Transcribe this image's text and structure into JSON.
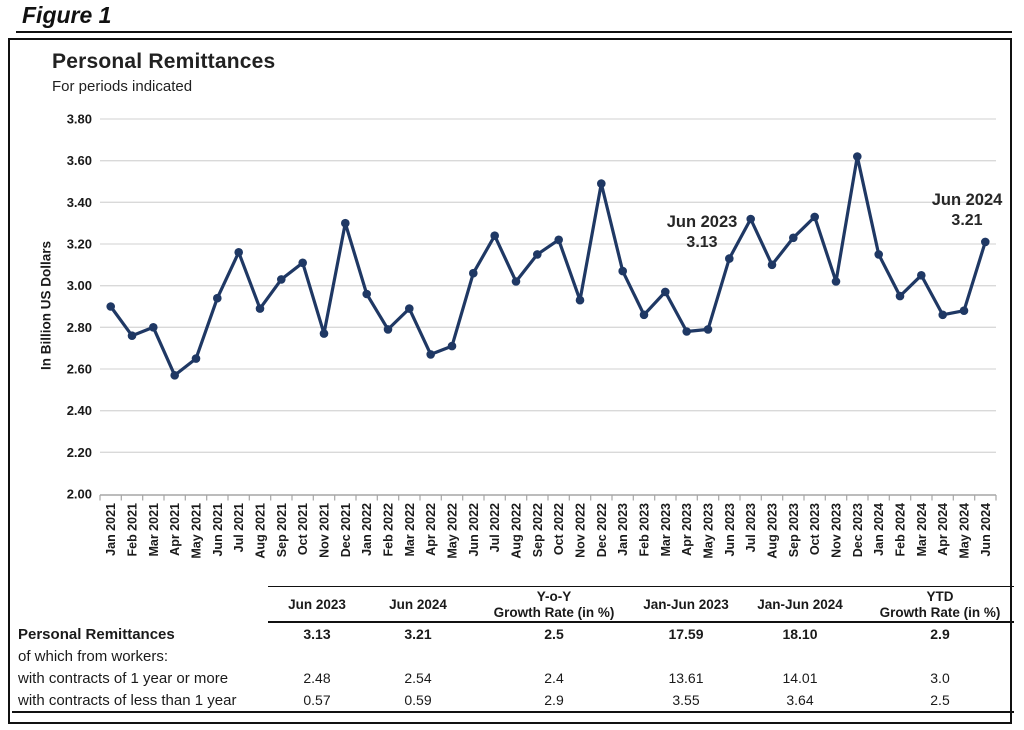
{
  "figure_label": "Figure 1",
  "chart": {
    "title": "Personal Remittances",
    "subtitle": "For periods indicated",
    "ylabel": "In Billion US Dollars",
    "annotations": {
      "jun2023": {
        "label": "Jun 2023",
        "value": "3.13"
      },
      "jun2024": {
        "label": "Jun 2024",
        "value": "3.21"
      }
    }
  },
  "chart_data": {
    "type": "line",
    "title": "Personal Remittances",
    "subtitle": "For periods indicated",
    "xlabel": "",
    "ylabel": "In Billion US Dollars",
    "ylim": [
      2.0,
      3.8
    ],
    "ytick_step": 0.2,
    "grid": true,
    "legend": false,
    "colors": {
      "line": "#1f3864",
      "grid": "#d9d9d9",
      "axis": "#a6a6a6",
      "text": "#1a1a1a"
    },
    "categories": [
      "Jan 2021",
      "Feb 2021",
      "Mar 2021",
      "Apr 2021",
      "May 2021",
      "Jun 2021",
      "Jul 2021",
      "Aug 2021",
      "Sep 2021",
      "Oct 2021",
      "Nov 2021",
      "Dec 2021",
      "Jan 2022",
      "Feb 2022",
      "Mar 2022",
      "Apr 2022",
      "May 2022",
      "Jun 2022",
      "Jul 2022",
      "Aug 2022",
      "Sep 2022",
      "Oct 2022",
      "Nov 2022",
      "Dec 2022",
      "Jan 2023",
      "Feb 2023",
      "Mar 2023",
      "Apr 2023",
      "May 2023",
      "Jun 2023",
      "Jul 2023",
      "Aug 2023",
      "Sep 2023",
      "Oct 2023",
      "Nov 2023",
      "Dec 2023",
      "Jan 2024",
      "Feb 2024",
      "Mar 2024",
      "Apr 2024",
      "May 2024",
      "Jun 2024"
    ],
    "values": [
      2.9,
      2.76,
      2.8,
      2.57,
      2.65,
      2.94,
      3.16,
      2.89,
      3.03,
      3.11,
      2.77,
      3.3,
      2.96,
      2.79,
      2.89,
      2.67,
      2.71,
      3.06,
      3.24,
      3.02,
      3.15,
      3.22,
      2.93,
      3.49,
      3.07,
      2.86,
      2.97,
      2.78,
      2.79,
      3.13,
      3.32,
      3.1,
      3.23,
      3.33,
      3.02,
      3.62,
      3.15,
      2.95,
      3.05,
      2.86,
      2.88,
      3.21
    ],
    "annotations": [
      {
        "category": "Jun 2023",
        "text": "Jun 2023",
        "value": 3.13
      },
      {
        "category": "Jun 2024",
        "text": "Jun 2024",
        "value": 3.21
      }
    ]
  },
  "table": {
    "col_headers": [
      "Jun 2023",
      "Jun 2024",
      "Y-o-Y\nGrowth Rate (in %)",
      "Jan-Jun 2023",
      "Jan-Jun 2024",
      "YTD\nGrowth Rate (in %)"
    ],
    "rows": [
      {
        "label": "Personal Remittances",
        "style": "bold",
        "values": [
          "3.13",
          "3.21",
          "2.5",
          "17.59",
          "18.10",
          "2.9"
        ]
      },
      {
        "label": "of which from workers:",
        "style": "normal",
        "values": [
          "",
          "",
          "",
          "",
          "",
          ""
        ]
      },
      {
        "label": "with contracts of 1 year or more",
        "style": "normal",
        "values": [
          "2.48",
          "2.54",
          "2.4",
          "13.61",
          "14.01",
          "3.0"
        ]
      },
      {
        "label": "with contracts of less than 1 year",
        "style": "normal",
        "values": [
          "0.57",
          "0.59",
          "2.9",
          "3.55",
          "3.64",
          "2.5"
        ]
      }
    ]
  }
}
